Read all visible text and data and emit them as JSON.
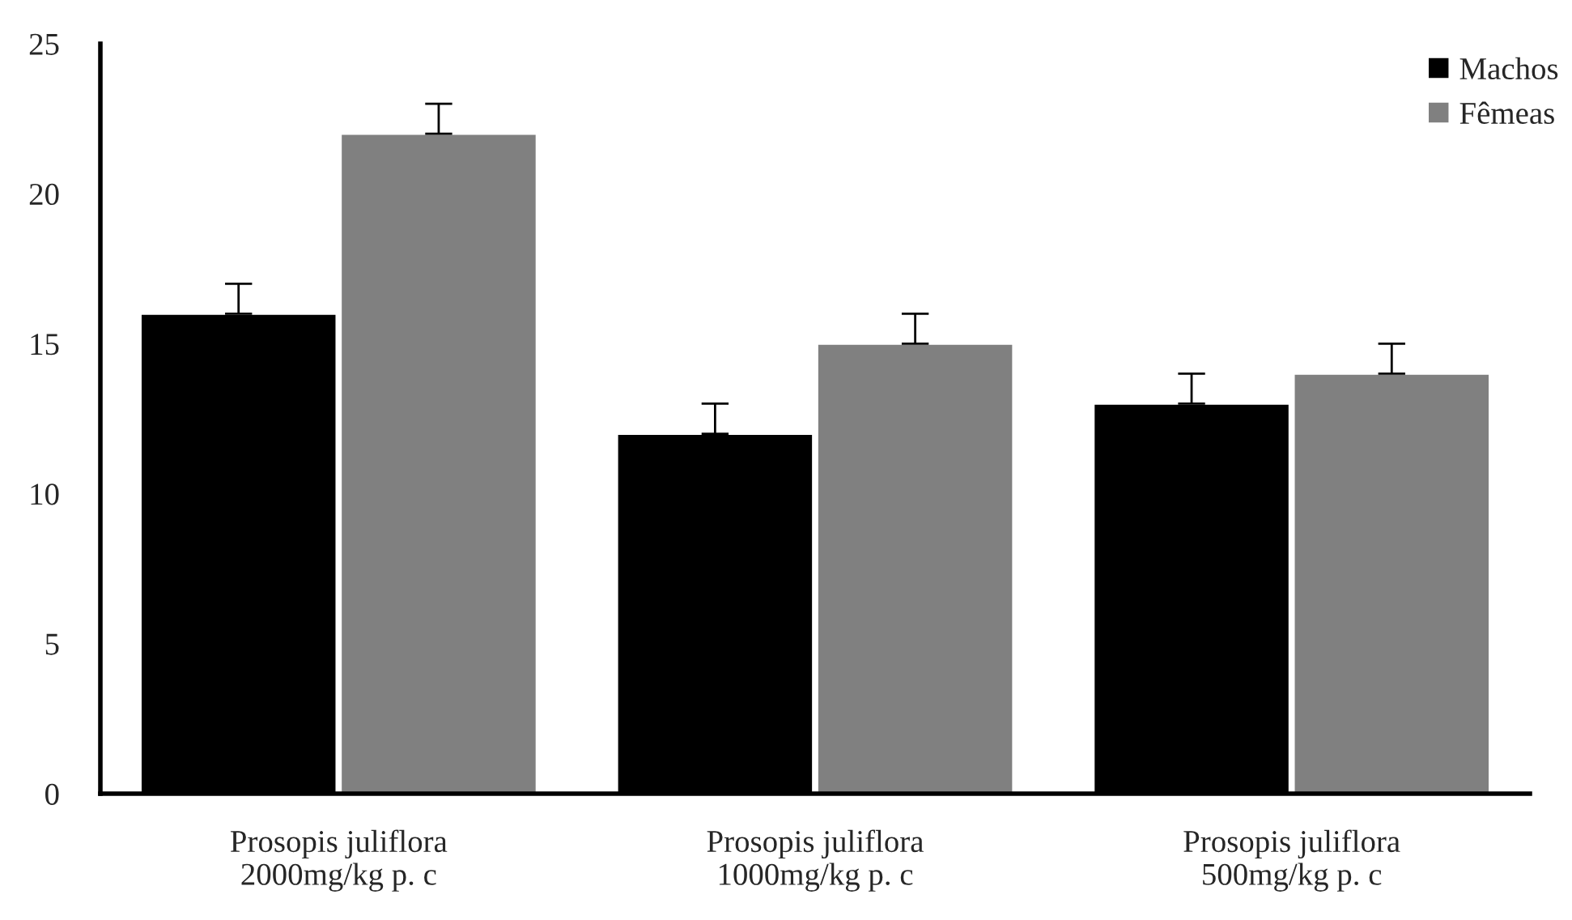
{
  "chart_data": {
    "type": "bar",
    "categories": [
      "Prosopis juliflora\n2000mg/kg p. c",
      "Prosopis juliflora\n1000mg/kg p. c",
      "Prosopis juliflora\n500mg/kg p. c"
    ],
    "series": [
      {
        "name": "Machos",
        "color": "#000000",
        "values": [
          16,
          12,
          13
        ],
        "errors": [
          [
            16,
            17
          ],
          [
            12,
            13
          ],
          [
            13,
            14
          ]
        ]
      },
      {
        "name": "Fêmeas",
        "color": "#808080",
        "values": [
          22,
          15,
          14
        ],
        "errors": [
          [
            22,
            23
          ],
          [
            15,
            16
          ],
          [
            14,
            15
          ]
        ]
      }
    ],
    "ylim": [
      0,
      25
    ],
    "yticks": [
      0,
      5,
      10,
      15,
      20,
      25
    ],
    "grid": false,
    "legend": "top right"
  }
}
